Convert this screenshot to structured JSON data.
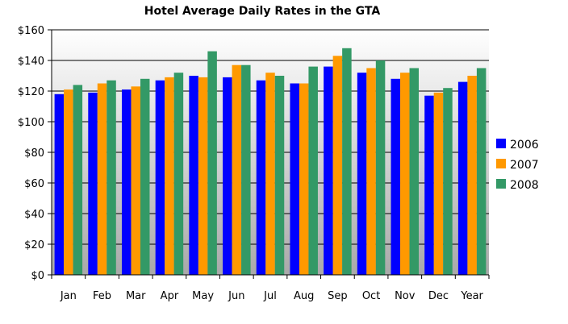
{
  "chart_data": {
    "type": "bar",
    "title": "Hotel Average Daily Rates in the GTA",
    "xlabel": "",
    "ylabel": "",
    "ylim": [
      0,
      160
    ],
    "yticks": [
      "$0",
      "$20",
      "$40",
      "$60",
      "$80",
      "$100",
      "$120",
      "$140",
      "$160"
    ],
    "categories": [
      "Jan",
      "Feb",
      "Mar",
      "Apr",
      "May",
      "Jun",
      "Jul",
      "Aug",
      "Sep",
      "Oct",
      "Nov",
      "Dec",
      "Year"
    ],
    "series": [
      {
        "name": "2006",
        "color": "#0000FF",
        "values": [
          118,
          119,
          121,
          127,
          130,
          129,
          127,
          125,
          136,
          132,
          128,
          117,
          126
        ]
      },
      {
        "name": "2007",
        "color": "#FF9900",
        "values": [
          121,
          125,
          123,
          129,
          129,
          137,
          132,
          125,
          143,
          135,
          132,
          119,
          130
        ]
      },
      {
        "name": "2008",
        "color": "#339966",
        "values": [
          124,
          127,
          128,
          132,
          146,
          137,
          130,
          136,
          148,
          140,
          135,
          122,
          135
        ]
      }
    ],
    "legend": "right",
    "grid": true
  }
}
